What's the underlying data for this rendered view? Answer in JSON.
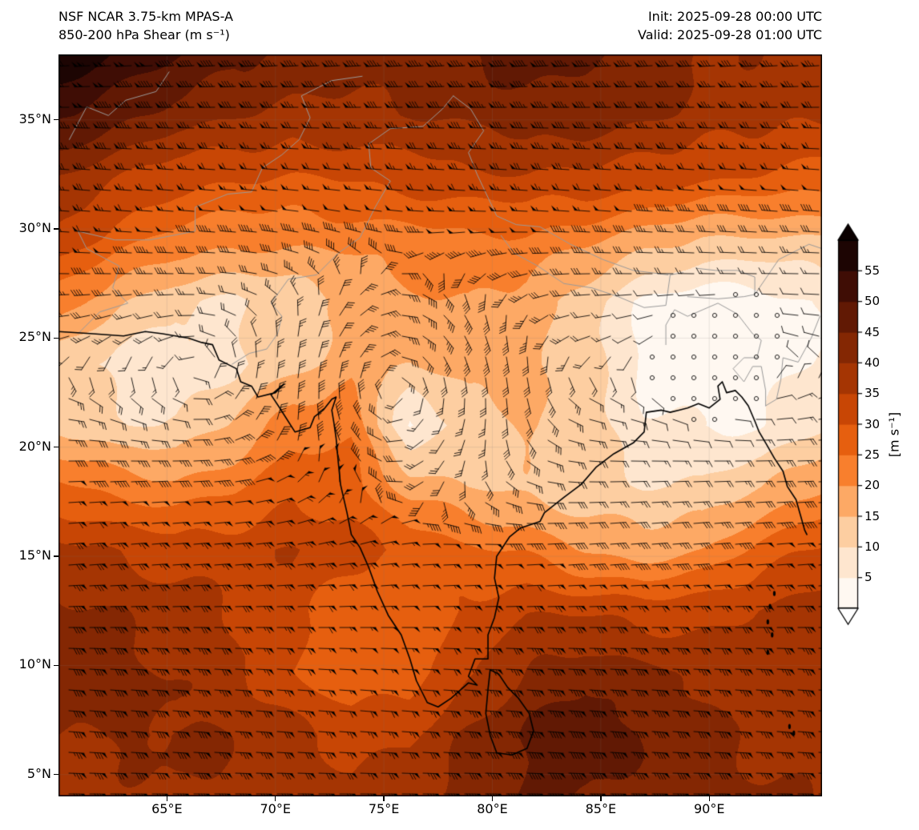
{
  "header": {
    "title_line1": "NSF NCAR 3.75-km MPAS-A",
    "title_line2": "850-200 hPa Shear (m s⁻¹)",
    "init_line": "Init: 2025-09-28 00:00 UTC",
    "valid_line": "Valid: 2025-09-28 01:00 UTC"
  },
  "axes": {
    "x_ticks": [
      {
        "lon": 65,
        "label": "65°E"
      },
      {
        "lon": 70,
        "label": "70°E"
      },
      {
        "lon": 75,
        "label": "75°E"
      },
      {
        "lon": 80,
        "label": "80°E"
      },
      {
        "lon": 85,
        "label": "85°E"
      },
      {
        "lon": 90,
        "label": "90°E"
      }
    ],
    "y_ticks": [
      {
        "lat": 5,
        "label": "5°N"
      },
      {
        "lat": 10,
        "label": "10°N"
      },
      {
        "lat": 15,
        "label": "15°N"
      },
      {
        "lat": 20,
        "label": "20°N"
      },
      {
        "lat": 25,
        "label": "25°N"
      },
      {
        "lat": 30,
        "label": "30°N"
      },
      {
        "lat": 35,
        "label": "35°N"
      }
    ]
  },
  "colorbar": {
    "label": "[m s⁻¹]",
    "ticks": [
      5,
      10,
      15,
      20,
      25,
      30,
      35,
      40,
      45,
      50,
      55
    ],
    "min": 0,
    "max": 60,
    "extend": "both"
  },
  "chart_data": {
    "type": "heatmap",
    "title": "850-200 hPa Shear (m s⁻¹)",
    "model": "NSF NCAR 3.75-km MPAS-A",
    "init": "2025-09-28 00:00 UTC",
    "valid": "2025-09-28 01:00 UTC",
    "units": "m s⁻¹",
    "lon_range": [
      60.0,
      95.2
    ],
    "lat_range": [
      4.0,
      38.0
    ],
    "x_tick_labels": [
      "65°E",
      "70°E",
      "75°E",
      "80°E",
      "85°E",
      "90°E"
    ],
    "y_tick_labels": [
      "5°N",
      "10°N",
      "15°N",
      "20°N",
      "25°N",
      "30°N",
      "35°N"
    ],
    "colorbar_ticks": [
      5,
      10,
      15,
      20,
      25,
      30,
      35,
      40,
      45,
      50,
      55
    ],
    "wind_overlay": "shear vector barbs with calm circles",
    "vortex_center": {
      "lon": 75.8,
      "lat": 22.8
    },
    "grid_lons": [
      60.0,
      62.7,
      65.4,
      68.1,
      70.8,
      73.5,
      76.2,
      78.9,
      81.6,
      84.3,
      87.0,
      89.7,
      92.4,
      95.2
    ],
    "grid_lats": [
      38.0,
      35.2,
      32.3,
      29.5,
      26.7,
      23.8,
      21.0,
      18.2,
      15.3,
      12.5,
      9.7,
      6.8,
      4.0
    ],
    "shear_values_ms": [
      [
        58,
        54,
        50,
        46,
        45,
        44,
        44,
        45,
        46,
        45,
        43,
        41,
        40,
        38
      ],
      [
        52,
        47,
        42,
        40,
        38,
        39,
        40,
        42,
        43,
        42,
        40,
        38,
        37,
        36
      ],
      [
        40,
        36,
        32,
        30,
        29,
        30,
        32,
        34,
        35,
        34,
        32,
        30,
        29,
        28
      ],
      [
        33,
        28,
        24,
        22,
        21,
        21,
        22,
        24,
        24,
        22,
        18,
        14,
        13,
        14
      ],
      [
        22,
        15,
        11,
        10,
        13,
        16,
        19,
        20,
        18,
        12,
        5,
        3,
        3,
        5
      ],
      [
        12,
        8,
        7,
        9,
        14,
        18,
        15,
        18,
        16,
        11,
        4,
        3,
        3,
        6
      ],
      [
        15,
        11,
        10,
        15,
        22,
        24,
        5,
        12,
        16,
        12,
        5,
        4,
        5,
        10
      ],
      [
        26,
        24,
        22,
        24,
        28,
        26,
        18,
        15,
        14,
        12,
        10,
        10,
        14,
        20
      ],
      [
        36,
        34,
        33,
        34,
        35,
        32,
        28,
        26,
        24,
        20,
        18,
        20,
        26,
        30
      ],
      [
        41,
        39,
        37,
        35,
        32,
        28,
        26,
        30,
        34,
        34,
        33,
        34,
        36,
        38
      ],
      [
        42,
        41,
        39,
        36,
        30,
        26,
        28,
        34,
        40,
        43,
        41,
        39,
        38,
        37
      ],
      [
        40,
        41,
        41,
        39,
        36,
        33,
        35,
        41,
        46,
        47,
        44,
        41,
        39,
        38
      ],
      [
        38,
        39,
        40,
        40,
        38,
        35,
        37,
        43,
        46,
        45,
        43,
        41,
        40,
        39
      ]
    ],
    "colormap": [
      {
        "v": 0,
        "c": "#ffffff"
      },
      {
        "v": 5,
        "c": "#fff0e2"
      },
      {
        "v": 10,
        "c": "#fddcbb"
      },
      {
        "v": 15,
        "c": "#fdbf86"
      },
      {
        "v": 20,
        "c": "#fd9243"
      },
      {
        "v": 25,
        "c": "#f26c17"
      },
      {
        "v": 30,
        "c": "#da5106"
      },
      {
        "v": 35,
        "c": "#b63b03"
      },
      {
        "v": 40,
        "c": "#942f03"
      },
      {
        "v": 45,
        "c": "#731f03"
      },
      {
        "v": 50,
        "c": "#4f1205"
      },
      {
        "v": 55,
        "c": "#2e0804"
      },
      {
        "v": 60,
        "c": "#0b0101"
      }
    ]
  }
}
